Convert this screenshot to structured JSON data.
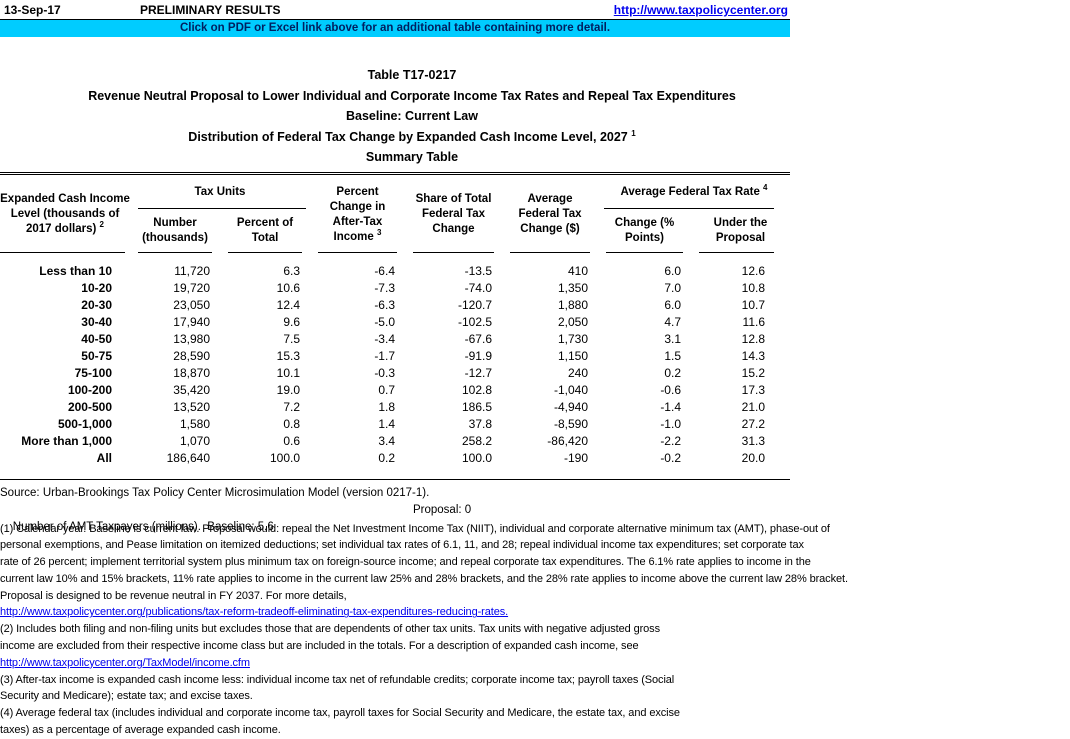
{
  "topbar": {
    "date": "13-Sep-17",
    "preliminary": "PRELIMINARY RESULTS",
    "url": "http://www.taxpolicycenter.org"
  },
  "banner": {
    "text": "Click on PDF or Excel link above for an additional table containing more detail.",
    "bg_color": "#00CCFF",
    "text_color": "#002060"
  },
  "title": {
    "line1": "Table T17-0217",
    "line2": "Revenue Neutral Proposal to Lower Individual and Corporate Income Tax Rates and Repeal Tax Expenditures",
    "line3": "Baseline: Current Law",
    "line4": "Distribution of Federal Tax Change by Expanded Cash Income Level, 2027",
    "line4_sup": "1",
    "line5": "Summary Table"
  },
  "table": {
    "header": {
      "income_lines": [
        "Expanded Cash Income",
        "Level (thousands of",
        "2017 dollars)"
      ],
      "income_sup": "2",
      "tax_units": "Tax Units",
      "number_lines": [
        "Number",
        "(thousands)"
      ],
      "percent_total_lines": [
        "Percent of",
        "Total"
      ],
      "aftertax_lines": [
        "Percent",
        "Change in",
        "After-Tax"
      ],
      "aftertax_last": "Income",
      "aftertax_sup": "3",
      "share_lines": [
        "Share of Total",
        "Federal Tax",
        "Change"
      ],
      "avg_change_lines": [
        "Average",
        "Federal Tax",
        "Change ($)"
      ],
      "rate": "Average Federal Tax Rate",
      "rate_sup": "4",
      "rate_pts_lines": [
        "Change (%",
        "Points)"
      ],
      "proposal_lines": [
        "Under the",
        "Proposal"
      ]
    },
    "rows": [
      [
        "Less than 10",
        "11,720",
        "6.3",
        "-6.4",
        "-13.5",
        "410",
        "6.0",
        "12.6"
      ],
      [
        "10-20",
        "19,720",
        "10.6",
        "-7.3",
        "-74.0",
        "1,350",
        "7.0",
        "10.8"
      ],
      [
        "20-30",
        "23,050",
        "12.4",
        "-6.3",
        "-120.7",
        "1,880",
        "6.0",
        "10.7"
      ],
      [
        "30-40",
        "17,940",
        "9.6",
        "-5.0",
        "-102.5",
        "2,050",
        "4.7",
        "11.6"
      ],
      [
        "40-50",
        "13,980",
        "7.5",
        "-3.4",
        "-67.6",
        "1,730",
        "3.1",
        "12.8"
      ],
      [
        "50-75",
        "28,590",
        "15.3",
        "-1.7",
        "-91.9",
        "1,150",
        "1.5",
        "14.3"
      ],
      [
        "75-100",
        "18,870",
        "10.1",
        "-0.3",
        "-12.7",
        "240",
        "0.2",
        "15.2"
      ],
      [
        "100-200",
        "35,420",
        "19.0",
        "0.7",
        "102.8",
        "-1,040",
        "-0.6",
        "17.3"
      ],
      [
        "200-500",
        "13,520",
        "7.2",
        "1.8",
        "186.5",
        "-4,940",
        "-1.4",
        "21.0"
      ],
      [
        "500-1,000",
        "1,580",
        "0.8",
        "1.4",
        "37.8",
        "-8,590",
        "-1.0",
        "27.2"
      ],
      [
        "More than 1,000",
        "1,070",
        "0.6",
        "3.4",
        "258.2",
        "-86,420",
        "-2.2",
        "31.3"
      ],
      [
        "All",
        "186,640",
        "100.0",
        "0.2",
        "100.0",
        "-190",
        "-0.2",
        "20.0"
      ]
    ]
  },
  "footer": {
    "source": "Source: Urban-Brookings Tax Policy Center Microsimulation Model (version 0217-1).",
    "amt_baseline": "Number of AMT Taxpayers (millions).  Baseline: 5.6",
    "amt_proposal": "Proposal: 0"
  },
  "footnotes": [
    {
      "lines": [
        "(1) Calendar year. Baseline is current law. Proposal would: repeal the Net Investment Income Tax (NIIT), individual and corporate alternative minimum tax (AMT), phase-out of",
        "personal exemptions, and Pease limitation on itemized deductions; set individual tax rates of 6.1, 11, and 28; repeal individual income tax expenditures; set corporate tax",
        "rate of 26 percent; implement territorial system plus minimum tax on foreign-source income; and repeal corporate tax expenditures. The 6.1% rate applies to income in the",
        "current law 10% and 15% brackets, 11% rate applies to income in the current law 25% and 28% brackets, and the 28% rate applies to income above the current law 28% bracket.",
        "Proposal is designed to be revenue neutral in FY 2037. For more details,"
      ],
      "link": "http://www.taxpolicycenter.org/publications/tax-reform-tradeoff-eliminating-tax-expenditures-reducing-rates."
    },
    {
      "lines": [
        "(2) Includes both filing and non-filing units but excludes those that are dependents of other tax units. Tax units with negative adjusted gross",
        "income are excluded from their respective income class but are included in the totals. For a description of expanded cash income, see"
      ],
      "link": "http://www.taxpolicycenter.org/TaxModel/income.cfm"
    },
    {
      "lines": [
        "(3) After-tax income is expanded cash income less: individual income tax net of refundable credits; corporate income tax; payroll taxes (Social",
        "Security and Medicare); estate tax; and excise taxes."
      ],
      "link": null
    },
    {
      "lines": [
        "(4) Average federal tax (includes individual and corporate income tax, payroll taxes for Social Security and Medicare, the estate tax, and excise",
        "taxes) as a percentage of average expanded cash income."
      ],
      "link": null
    }
  ]
}
